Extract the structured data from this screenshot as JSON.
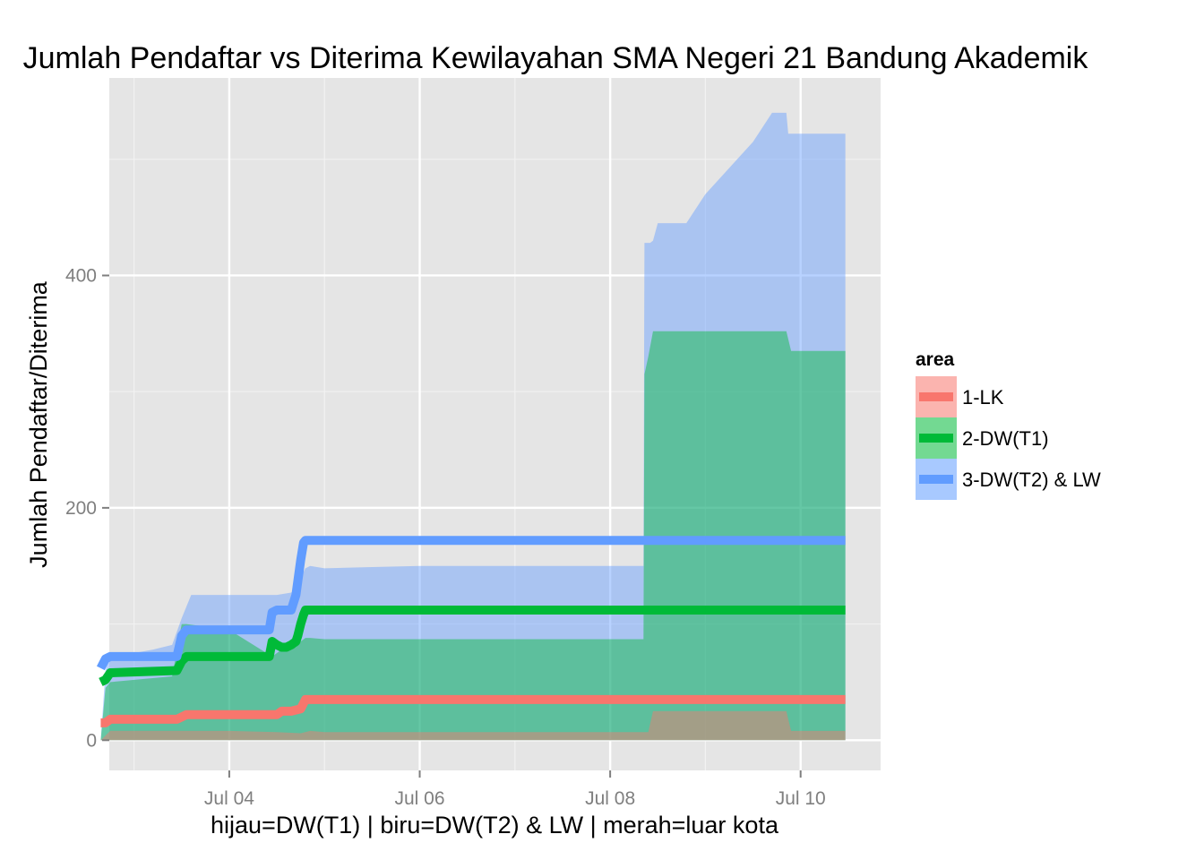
{
  "chart_data": {
    "type": "area",
    "title": "Jumlah Pendaftar vs Diterima Kewilayahan SMA Negeri 21 Bandung Akademik",
    "xlabel": "hijau=DW(T1) | biru=DW(T2) & LW | merah=luar kota",
    "ylabel": "Jumlah Pendaftar/Diterima",
    "x_ticks": [
      "Jul 04",
      "Jul 06",
      "Jul 08",
      "Jul 10"
    ],
    "y_ticks": [
      0,
      200,
      400
    ],
    "xlim_days": [
      2.74,
      10.84
    ],
    "ylim": [
      -26,
      570
    ],
    "grid": true,
    "legend": {
      "title": "area",
      "position": "right",
      "entries": [
        "1-LK",
        "2-DW(T1)",
        "3-DW(T2) & LW"
      ]
    },
    "colors": {
      "panel": "#e5e5e5",
      "grid_major": "#ffffff",
      "grid_minor": "#f2f2f2",
      "lk_fill": "#f8766d",
      "dw1_fill": "#00ba38",
      "dw2_fill": "#619cff"
    },
    "series": [
      {
        "name": "1-LK",
        "kind": "area",
        "x": [
          2.65,
          2.75,
          3.5,
          4.0,
          4.5,
          4.75,
          4.85,
          5.0,
          6.0,
          7.0,
          8.0,
          8.4,
          8.45,
          8.5,
          9.0,
          9.5,
          9.85,
          9.9,
          10.0,
          10.47
        ],
        "y": [
          0,
          8,
          8,
          8,
          7,
          6,
          8,
          7,
          7,
          7,
          7,
          7,
          25,
          25,
          25,
          25,
          25,
          8,
          8,
          8
        ]
      },
      {
        "name": "2-DW(T1)",
        "kind": "area",
        "x": [
          2.65,
          2.7,
          2.75,
          3.4,
          3.5,
          3.55,
          4.0,
          4.45,
          4.5,
          4.55,
          4.7,
          4.75,
          4.8,
          4.85,
          5.0,
          6.0,
          7.0,
          8.0,
          8.35,
          8.36,
          8.4,
          8.45,
          9.0,
          9.5,
          9.85,
          9.9,
          10.0,
          10.47
        ],
        "y": [
          0,
          45,
          50,
          55,
          100,
          100,
          95,
          72,
          75,
          78,
          80,
          85,
          88,
          88,
          87,
          87,
          87,
          87,
          87,
          315,
          330,
          352,
          352,
          352,
          352,
          335,
          335,
          335
        ]
      },
      {
        "name": "3-DW(T2) & LW",
        "kind": "area",
        "x": [
          2.65,
          2.7,
          2.75,
          3.0,
          3.2,
          3.4,
          3.5,
          3.55,
          3.6,
          4.0,
          4.45,
          4.5,
          4.65,
          4.7,
          4.75,
          4.8,
          4.85,
          5.0,
          5.5,
          6.0,
          7.0,
          8.0,
          8.35,
          8.36,
          8.4,
          8.42,
          8.45,
          8.5,
          8.8,
          9.0,
          9.5,
          9.7,
          9.85,
          9.87,
          10.0,
          10.47
        ],
        "y": [
          0,
          60,
          75,
          75,
          78,
          82,
          105,
          115,
          125,
          125,
          125,
          125,
          127,
          130,
          140,
          148,
          150,
          148,
          149,
          150,
          150,
          150,
          150,
          428,
          428,
          428,
          430,
          445,
          445,
          470,
          515,
          540,
          540,
          522,
          522,
          522
        ]
      },
      {
        "name": "1-LK",
        "kind": "line",
        "x": [
          2.65,
          2.7,
          2.75,
          3.45,
          3.5,
          3.55,
          4.5,
          4.55,
          4.65,
          4.75,
          4.8,
          5.0,
          10.47
        ],
        "y": [
          15,
          15,
          18,
          18,
          20,
          22,
          22,
          25,
          25,
          27,
          35,
          35,
          35
        ]
      },
      {
        "name": "2-DW(T1)",
        "kind": "line",
        "x": [
          2.65,
          2.7,
          2.75,
          3.45,
          3.5,
          3.55,
          4.0,
          4.42,
          4.45,
          4.5,
          4.55,
          4.6,
          4.65,
          4.7,
          4.72,
          4.75,
          4.78,
          4.8,
          5.0,
          10.47
        ],
        "y": [
          50,
          52,
          58,
          60,
          68,
          72,
          72,
          72,
          85,
          82,
          80,
          80,
          82,
          85,
          90,
          100,
          108,
          112,
          112,
          112
        ]
      },
      {
        "name": "3-DW(T2) & LW",
        "kind": "line",
        "x": [
          2.65,
          2.7,
          2.75,
          3.45,
          3.5,
          3.55,
          4.0,
          4.42,
          4.45,
          4.5,
          4.65,
          4.7,
          4.75,
          4.78,
          4.8,
          5.0,
          10.47
        ],
        "y": [
          62,
          70,
          72,
          72,
          90,
          95,
          95,
          95,
          110,
          112,
          112,
          125,
          155,
          170,
          172,
          172,
          172
        ]
      }
    ]
  }
}
